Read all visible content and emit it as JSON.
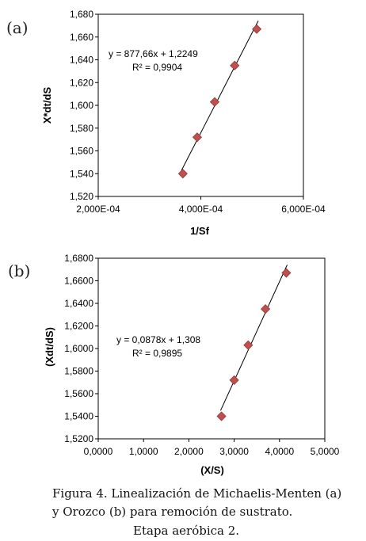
{
  "chart_data": [
    {
      "type": "scatter",
      "panel_label": "(a)",
      "xlabel": "1/Sf",
      "ylabel": "X*dt/dS",
      "xlim": [
        0.0002,
        0.0006
      ],
      "ylim": [
        1.52,
        1.68
      ],
      "x_ticks": [
        "2,000E-04",
        "4,000E-04",
        "6,000E-04"
      ],
      "y_ticks": [
        "1,520",
        "1,540",
        "1,560",
        "1,580",
        "1,600",
        "1,620",
        "1,640",
        "1,660",
        "1,680"
      ],
      "points": [
        {
          "x": 0.000365,
          "y": 1.54
        },
        {
          "x": 0.000393,
          "y": 1.572
        },
        {
          "x": 0.000427,
          "y": 1.603
        },
        {
          "x": 0.000466,
          "y": 1.635
        },
        {
          "x": 0.000509,
          "y": 1.667
        }
      ],
      "trendline": {
        "slope": 877.66,
        "intercept": 1.2249,
        "x_range": [
          0.000362,
          0.000512
        ]
      },
      "equation": "y = 877,66x + 1,2249",
      "r2": "R² = 0,9904",
      "marker_color": "#c0504d",
      "grid": false
    },
    {
      "type": "scatter",
      "panel_label": "(b)",
      "xlabel": "(X/S)",
      "ylabel": "(Xdt/dS)",
      "xlim": [
        0,
        5
      ],
      "ylim": [
        1.52,
        1.68
      ],
      "x_ticks": [
        "0,0000",
        "1,0000",
        "2,0000",
        "3,0000",
        "4,0000",
        "5,0000"
      ],
      "y_ticks": [
        "1,5200",
        "1,5400",
        "1,5600",
        "1,5800",
        "1,6000",
        "1,6200",
        "1,6400",
        "1,6600",
        "1,6800"
      ],
      "points": [
        {
          "x": 2.72,
          "y": 1.54
        },
        {
          "x": 3.0,
          "y": 1.572
        },
        {
          "x": 3.31,
          "y": 1.603
        },
        {
          "x": 3.69,
          "y": 1.635
        },
        {
          "x": 4.15,
          "y": 1.667
        }
      ],
      "trendline": {
        "slope": 0.0878,
        "intercept": 1.308,
        "x_range": [
          2.7,
          4.17
        ]
      },
      "equation": "y = 0,0878x + 1,308",
      "r2": "R² = 0,9895",
      "marker_color": "#c0504d",
      "grid": false
    }
  ],
  "caption": {
    "line1": "Figura 4. Linealización de Michaelis-Menten (a)",
    "line2": "y Orozco  (b) para remoción de sustrato.",
    "line3": "Etapa aeróbica 2."
  }
}
